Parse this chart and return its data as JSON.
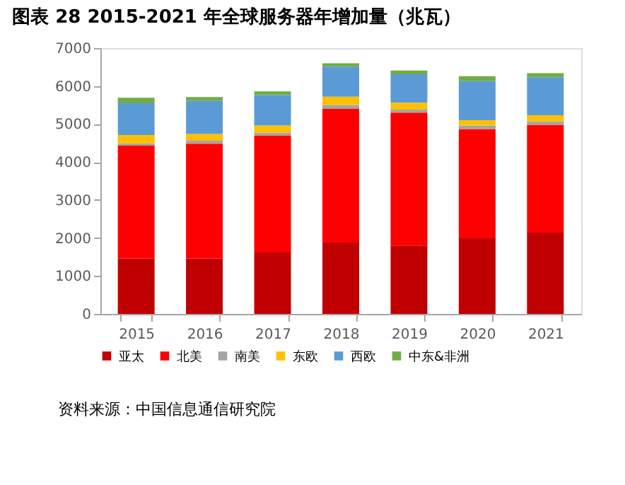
{
  "chart_data": {
    "type": "bar",
    "title": "图表 28 2015-2021 年全球服务器年增加量（兆瓦）",
    "categories": [
      "2015",
      "2016",
      "2017",
      "2018",
      "2019",
      "2020",
      "2021"
    ],
    "stacked": true,
    "series": [
      {
        "name": "亚太",
        "color": "#c00000",
        "values": [
          1460,
          1460,
          1620,
          1880,
          1800,
          1990,
          2140
        ]
      },
      {
        "name": "北美",
        "color": "#ff0000",
        "values": [
          2970,
          3020,
          3070,
          3520,
          3500,
          2880,
          2840
        ]
      },
      {
        "name": "南美",
        "color": "#a5a5a5",
        "values": [
          60,
          80,
          80,
          100,
          80,
          90,
          90
        ]
      },
      {
        "name": "东欧",
        "color": "#ffc000",
        "values": [
          220,
          180,
          190,
          220,
          180,
          140,
          160
        ]
      },
      {
        "name": "西欧",
        "color": "#5b9bd5",
        "values": [
          840,
          870,
          800,
          790,
          750,
          1030,
          1000
        ]
      },
      {
        "name": "中东&非洲",
        "color": "#70ad47",
        "values": [
          140,
          100,
          100,
          90,
          100,
          130,
          110
        ]
      }
    ],
    "ylim": [
      0,
      7000
    ],
    "yticks": [
      0,
      1000,
      2000,
      3000,
      4000,
      5000,
      6000,
      7000
    ],
    "grid": false,
    "legend": "bottom",
    "annotations": [
      "资料来源：中国信息通信研究院"
    ]
  }
}
